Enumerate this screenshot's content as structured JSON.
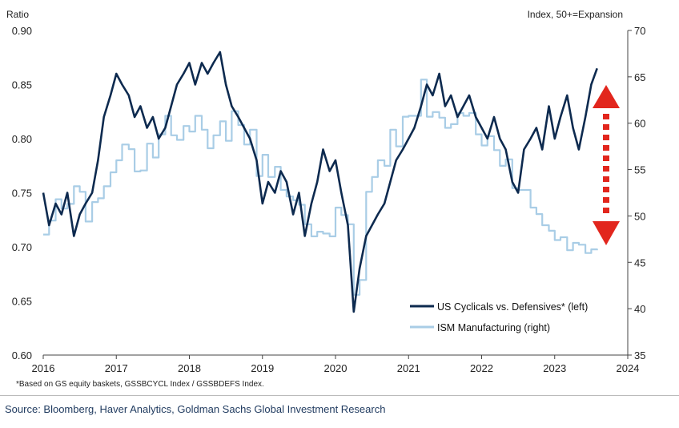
{
  "chart_data": {
    "type": "line",
    "title": "",
    "ylabel_left": "Ratio",
    "ylabel_right": "Index, 50+=Expansion",
    "x_ticks": [
      "2016",
      "2017",
      "2018",
      "2019",
      "2020",
      "2021",
      "2022",
      "2023",
      "2024"
    ],
    "xlim": [
      2016,
      2024
    ],
    "ylim_left": [
      0.6,
      0.9
    ],
    "ylim_right": [
      35,
      70
    ],
    "y_ticks_left": [
      "0.60",
      "0.65",
      "0.70",
      "0.75",
      "0.80",
      "0.85",
      "0.90"
    ],
    "y_ticks_right": [
      "35",
      "40",
      "45",
      "50",
      "55",
      "60",
      "65",
      "70"
    ],
    "legend_position": "bottom-right",
    "series": [
      {
        "name": "US Cyclicals vs. Defensives* (left)",
        "axis": "left",
        "color": "#0d2a4f",
        "x": [
          2016.0,
          2016.08,
          2016.17,
          2016.25,
          2016.33,
          2016.42,
          2016.5,
          2016.58,
          2016.67,
          2016.75,
          2016.83,
          2016.92,
          2017.0,
          2017.08,
          2017.17,
          2017.25,
          2017.33,
          2017.42,
          2017.5,
          2017.58,
          2017.67,
          2017.75,
          2017.83,
          2017.92,
          2018.0,
          2018.08,
          2018.17,
          2018.25,
          2018.33,
          2018.42,
          2018.5,
          2018.58,
          2018.67,
          2018.75,
          2018.83,
          2018.92,
          2019.0,
          2019.08,
          2019.17,
          2019.25,
          2019.33,
          2019.42,
          2019.5,
          2019.58,
          2019.67,
          2019.75,
          2019.83,
          2019.92,
          2020.0,
          2020.08,
          2020.17,
          2020.25,
          2020.33,
          2020.42,
          2020.5,
          2020.58,
          2020.67,
          2020.75,
          2020.83,
          2020.92,
          2021.0,
          2021.08,
          2021.17,
          2021.25,
          2021.33,
          2021.42,
          2021.5,
          2021.58,
          2021.67,
          2021.75,
          2021.83,
          2021.92,
          2022.0,
          2022.08,
          2022.17,
          2022.25,
          2022.33,
          2022.42,
          2022.5,
          2022.58,
          2022.67,
          2022.75,
          2022.83,
          2022.92,
          2023.0,
          2023.08,
          2023.17,
          2023.25,
          2023.33,
          2023.42,
          2023.5,
          2023.58
        ],
        "values": [
          0.75,
          0.72,
          0.74,
          0.73,
          0.75,
          0.71,
          0.73,
          0.74,
          0.75,
          0.78,
          0.82,
          0.84,
          0.86,
          0.85,
          0.84,
          0.82,
          0.83,
          0.81,
          0.82,
          0.8,
          0.81,
          0.83,
          0.85,
          0.86,
          0.87,
          0.85,
          0.87,
          0.86,
          0.87,
          0.88,
          0.85,
          0.83,
          0.82,
          0.81,
          0.8,
          0.78,
          0.74,
          0.76,
          0.75,
          0.77,
          0.76,
          0.73,
          0.75,
          0.71,
          0.74,
          0.76,
          0.79,
          0.77,
          0.78,
          0.75,
          0.72,
          0.64,
          0.68,
          0.71,
          0.72,
          0.73,
          0.74,
          0.76,
          0.78,
          0.79,
          0.8,
          0.81,
          0.83,
          0.85,
          0.84,
          0.86,
          0.83,
          0.84,
          0.82,
          0.83,
          0.84,
          0.82,
          0.81,
          0.8,
          0.82,
          0.8,
          0.79,
          0.76,
          0.75,
          0.79,
          0.8,
          0.81,
          0.79,
          0.83,
          0.8,
          0.82,
          0.84,
          0.81,
          0.79,
          0.82,
          0.85,
          0.865
        ]
      },
      {
        "name": "ISM Manufacturing (right)",
        "axis": "right",
        "color": "#a9cde6",
        "x": [
          2016.0,
          2016.08,
          2016.17,
          2016.25,
          2016.33,
          2016.42,
          2016.5,
          2016.58,
          2016.67,
          2016.75,
          2016.83,
          2016.92,
          2017.0,
          2017.08,
          2017.17,
          2017.25,
          2017.33,
          2017.42,
          2017.5,
          2017.58,
          2017.67,
          2017.75,
          2017.83,
          2017.92,
          2018.0,
          2018.08,
          2018.17,
          2018.25,
          2018.33,
          2018.42,
          2018.5,
          2018.58,
          2018.67,
          2018.75,
          2018.83,
          2018.92,
          2019.0,
          2019.08,
          2019.17,
          2019.25,
          2019.33,
          2019.42,
          2019.5,
          2019.58,
          2019.67,
          2019.75,
          2019.83,
          2019.92,
          2020.0,
          2020.08,
          2020.17,
          2020.25,
          2020.33,
          2020.42,
          2020.5,
          2020.58,
          2020.67,
          2020.75,
          2020.83,
          2020.92,
          2021.0,
          2021.08,
          2021.17,
          2021.25,
          2021.33,
          2021.42,
          2021.5,
          2021.58,
          2021.67,
          2021.75,
          2021.83,
          2021.92,
          2022.0,
          2022.08,
          2022.17,
          2022.25,
          2022.33,
          2022.42,
          2022.5,
          2022.58,
          2022.67,
          2022.75,
          2022.83,
          2022.92,
          2023.0,
          2023.08,
          2023.17,
          2023.25,
          2023.33,
          2023.42,
          2023.5,
          2023.58
        ],
        "values": [
          48.0,
          49.5,
          51.8,
          50.8,
          51.3,
          53.2,
          52.6,
          49.4,
          51.5,
          51.9,
          53.2,
          54.7,
          56.0,
          57.7,
          57.2,
          54.8,
          54.9,
          57.8,
          56.3,
          58.8,
          60.8,
          58.7,
          58.2,
          59.7,
          59.1,
          60.8,
          59.3,
          57.3,
          58.7,
          60.2,
          58.1,
          61.3,
          59.8,
          57.7,
          59.3,
          54.3,
          56.6,
          54.2,
          55.3,
          52.8,
          52.1,
          51.7,
          51.2,
          49.1,
          47.8,
          48.3,
          48.1,
          47.8,
          50.9,
          50.1,
          49.1,
          41.5,
          43.1,
          52.6,
          54.2,
          56.0,
          55.4,
          59.3,
          57.5,
          60.7,
          60.8,
          60.8,
          64.7,
          60.7,
          61.2,
          60.6,
          59.5,
          59.9,
          61.1,
          60.8,
          61.1,
          58.8,
          57.6,
          58.6,
          57.1,
          55.4,
          56.1,
          53.0,
          52.8,
          52.8,
          50.9,
          50.2,
          49.0,
          48.4,
          47.4,
          47.7,
          46.3,
          47.1,
          46.9,
          46.0,
          46.4,
          46.3
        ]
      }
    ],
    "annotation": "double-headed-dotted-arrow"
  },
  "footnote": "*Based on GS equity baskets, GSSBCYCL  Index / GSSBDEFS  Index.",
  "source": "Source: Bloomberg, Haver Analytics, Goldman Sachs Global Investment Research",
  "colors": {
    "arrow": "#e2261d",
    "axis": "#444444"
  }
}
